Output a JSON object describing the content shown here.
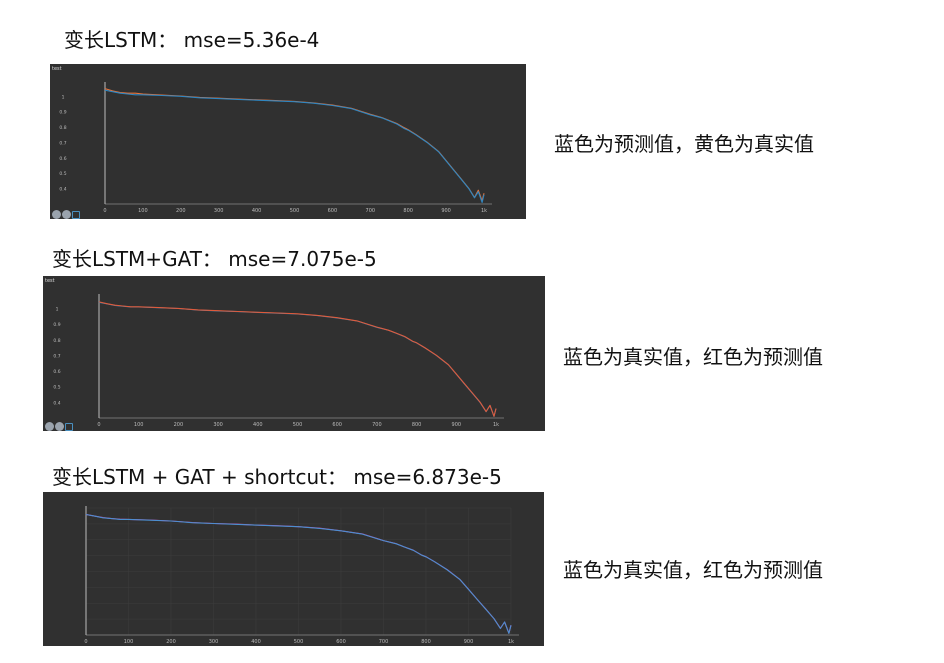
{
  "panels": [
    {
      "title": "变长LSTM： mse=5.36e-4",
      "note": "蓝色为预测值，黄色为真实值",
      "tag": "test",
      "show_toolbar": true,
      "colors": {
        "series_a": "#2e86c1",
        "series_b": "#e8743b"
      }
    },
    {
      "title": "变长LSTM+GAT： mse=7.075e-5",
      "note": "蓝色为真实值，红色为预测值",
      "tag": "test",
      "show_toolbar": true,
      "colors": {
        "series_a": "#2e86c1",
        "series_b": "#e05a3a"
      }
    },
    {
      "title": "变长LSTM + GAT + shortcut： mse=6.873e-5",
      "note": "蓝色为真实值，红色为预测值",
      "tag": "",
      "show_toolbar": false,
      "colors": {
        "series_a": "#4a8fd0",
        "series_b": "#e040a0"
      }
    }
  ],
  "chart_data": [
    {
      "type": "line",
      "title": "test",
      "x_ticks": [
        "0",
        "100",
        "200",
        "300",
        "400",
        "500",
        "600",
        "700",
        "800",
        "900",
        "1k"
      ],
      "y_ticks": [
        "1",
        "0.9",
        "0.8",
        "0.7",
        "0.6",
        "0.5",
        "0.4"
      ],
      "xlim": [
        0,
        1000
      ],
      "ylim": [
        0.3,
        1.08
      ],
      "grid": false,
      "x": [
        0,
        20,
        40,
        60,
        80,
        100,
        150,
        200,
        250,
        300,
        350,
        400,
        450,
        500,
        550,
        600,
        650,
        700,
        730,
        750,
        770,
        790,
        800,
        820,
        850,
        880,
        900,
        920,
        940,
        960,
        975,
        985,
        995,
        1000
      ],
      "series": [
        {
          "values": [
            1.04,
            1.03,
            1.02,
            1.015,
            1.01,
            1.01,
            1.005,
            1.0,
            0.99,
            0.985,
            0.98,
            0.975,
            0.97,
            0.965,
            0.955,
            0.94,
            0.92,
            0.88,
            0.86,
            0.84,
            0.82,
            0.79,
            0.78,
            0.75,
            0.7,
            0.64,
            0.58,
            0.52,
            0.46,
            0.4,
            0.34,
            0.38,
            0.31,
            0.36
          ]
        },
        {
          "values": [
            1.05,
            1.035,
            1.025,
            1.02,
            1.02,
            1.015,
            1.008,
            1.002,
            0.993,
            0.988,
            0.982,
            0.977,
            0.972,
            0.967,
            0.957,
            0.943,
            0.922,
            0.883,
            0.862,
            0.843,
            0.823,
            0.795,
            0.783,
            0.752,
            0.702,
            0.642,
            0.582,
            0.522,
            0.462,
            0.402,
            0.342,
            0.39,
            0.32,
            0.37
          ]
        }
      ]
    },
    {
      "type": "line",
      "title": "test",
      "x_ticks": [
        "0",
        "100",
        "200",
        "300",
        "400",
        "500",
        "600",
        "700",
        "800",
        "900",
        "1k"
      ],
      "y_ticks": [
        "1",
        "0.9",
        "0.8",
        "0.7",
        "0.6",
        "0.5",
        "0.4"
      ],
      "xlim": [
        0,
        1000
      ],
      "ylim": [
        0.3,
        1.08
      ],
      "grid": false,
      "x": [
        0,
        20,
        40,
        60,
        80,
        100,
        150,
        200,
        250,
        300,
        350,
        400,
        450,
        500,
        550,
        600,
        650,
        700,
        730,
        750,
        770,
        790,
        800,
        820,
        850,
        880,
        900,
        920,
        940,
        960,
        975,
        985,
        995,
        1000
      ],
      "series": [
        {
          "values": [
            1.04,
            1.03,
            1.02,
            1.015,
            1.01,
            1.01,
            1.005,
            1.0,
            0.99,
            0.985,
            0.98,
            0.975,
            0.97,
            0.965,
            0.955,
            0.94,
            0.92,
            0.88,
            0.86,
            0.84,
            0.82,
            0.79,
            0.78,
            0.75,
            0.7,
            0.64,
            0.58,
            0.52,
            0.46,
            0.4,
            0.34,
            0.38,
            0.31,
            0.36
          ]
        },
        {
          "values": [
            1.042,
            1.031,
            1.021,
            1.016,
            1.011,
            1.011,
            1.006,
            1.001,
            0.991,
            0.986,
            0.981,
            0.976,
            0.971,
            0.966,
            0.956,
            0.941,
            0.921,
            0.881,
            0.861,
            0.841,
            0.821,
            0.791,
            0.781,
            0.751,
            0.701,
            0.641,
            0.581,
            0.521,
            0.461,
            0.401,
            0.341,
            0.381,
            0.311,
            0.361
          ]
        }
      ]
    },
    {
      "type": "line",
      "title": "",
      "x_ticks": [
        "0",
        "100",
        "200",
        "300",
        "400",
        "500",
        "600",
        "700",
        "800",
        "900",
        "1k"
      ],
      "y_ticks": [],
      "xlim": [
        0,
        1000
      ],
      "ylim": [
        0.3,
        1.08
      ],
      "grid": true,
      "x": [
        0,
        20,
        40,
        60,
        80,
        100,
        150,
        200,
        250,
        300,
        350,
        400,
        450,
        500,
        550,
        600,
        650,
        700,
        730,
        750,
        770,
        790,
        800,
        820,
        850,
        880,
        900,
        920,
        940,
        960,
        975,
        985,
        995,
        1000
      ],
      "series": [
        {
          "values": [
            1.04,
            1.03,
            1.02,
            1.015,
            1.01,
            1.01,
            1.005,
            1.0,
            0.99,
            0.985,
            0.98,
            0.975,
            0.97,
            0.965,
            0.955,
            0.94,
            0.92,
            0.88,
            0.86,
            0.84,
            0.82,
            0.79,
            0.78,
            0.75,
            0.7,
            0.64,
            0.58,
            0.52,
            0.46,
            0.4,
            0.34,
            0.38,
            0.31,
            0.36
          ]
        },
        {
          "values": [
            1.041,
            1.03,
            1.021,
            1.015,
            1.011,
            1.01,
            1.006,
            1.0,
            0.991,
            0.985,
            0.981,
            0.975,
            0.971,
            0.965,
            0.956,
            0.94,
            0.921,
            0.88,
            0.861,
            0.84,
            0.821,
            0.79,
            0.781,
            0.75,
            0.701,
            0.64,
            0.581,
            0.52,
            0.461,
            0.4,
            0.341,
            0.38,
            0.311,
            0.36
          ]
        }
      ]
    }
  ]
}
